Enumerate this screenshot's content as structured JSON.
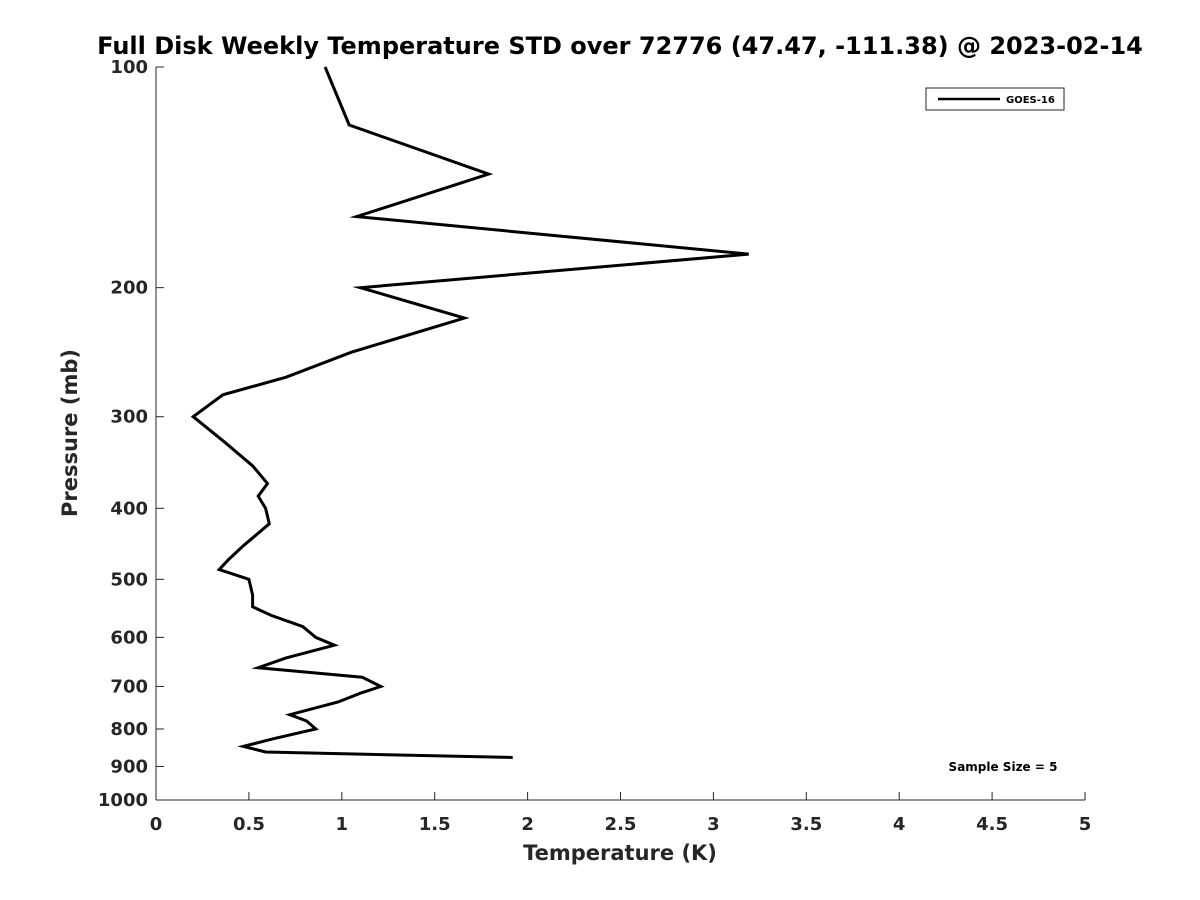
{
  "chart_data": {
    "type": "line",
    "title": "Full Disk Weekly Temperature STD over 72776 (47.47, -111.38) @ 2023-02-14",
    "xlabel": "Temperature (K)",
    "ylabel": "Pressure (mb)",
    "xlim": [
      0,
      5
    ],
    "ylim": [
      100,
      1000
    ],
    "y_scale": "log",
    "y_reversed": true,
    "x_ticks": [
      "0",
      "0.5",
      "1",
      "1.5",
      "2",
      "2.5",
      "3",
      "3.5",
      "4",
      "4.5",
      "5"
    ],
    "y_ticks": [
      "100",
      "200",
      "300",
      "400",
      "500",
      "600",
      "700",
      "800",
      "900",
      "1000"
    ],
    "grid": false,
    "legend_position": "top-right",
    "annotation": "Sample Size = 5",
    "series": [
      {
        "name": "GOES-16",
        "color": "#000000",
        "points": [
          {
            "x": 0.91,
            "y": 100
          },
          {
            "x": 1.04,
            "y": 120
          },
          {
            "x": 1.79,
            "y": 140
          },
          {
            "x": 1.08,
            "y": 160
          },
          {
            "x": 3.19,
            "y": 180
          },
          {
            "x": 1.1,
            "y": 200
          },
          {
            "x": 1.66,
            "y": 220
          },
          {
            "x": 1.05,
            "y": 245
          },
          {
            "x": 0.7,
            "y": 265
          },
          {
            "x": 0.36,
            "y": 280
          },
          {
            "x": 0.2,
            "y": 300
          },
          {
            "x": 0.37,
            "y": 325
          },
          {
            "x": 0.52,
            "y": 350
          },
          {
            "x": 0.6,
            "y": 370
          },
          {
            "x": 0.55,
            "y": 385
          },
          {
            "x": 0.59,
            "y": 400
          },
          {
            "x": 0.61,
            "y": 420
          },
          {
            "x": 0.47,
            "y": 450
          },
          {
            "x": 0.39,
            "y": 470
          },
          {
            "x": 0.34,
            "y": 485
          },
          {
            "x": 0.5,
            "y": 500
          },
          {
            "x": 0.52,
            "y": 525
          },
          {
            "x": 0.52,
            "y": 545
          },
          {
            "x": 0.62,
            "y": 560
          },
          {
            "x": 0.79,
            "y": 580
          },
          {
            "x": 0.86,
            "y": 600
          },
          {
            "x": 0.96,
            "y": 615
          },
          {
            "x": 0.7,
            "y": 640
          },
          {
            "x": 0.55,
            "y": 660
          },
          {
            "x": 1.11,
            "y": 680
          },
          {
            "x": 1.21,
            "y": 700
          },
          {
            "x": 1.1,
            "y": 715
          },
          {
            "x": 0.98,
            "y": 735
          },
          {
            "x": 0.72,
            "y": 765
          },
          {
            "x": 0.81,
            "y": 780
          },
          {
            "x": 0.86,
            "y": 800
          },
          {
            "x": 0.63,
            "y": 825
          },
          {
            "x": 0.47,
            "y": 845
          },
          {
            "x": 0.59,
            "y": 860
          },
          {
            "x": 1.92,
            "y": 875
          }
        ]
      }
    ]
  }
}
